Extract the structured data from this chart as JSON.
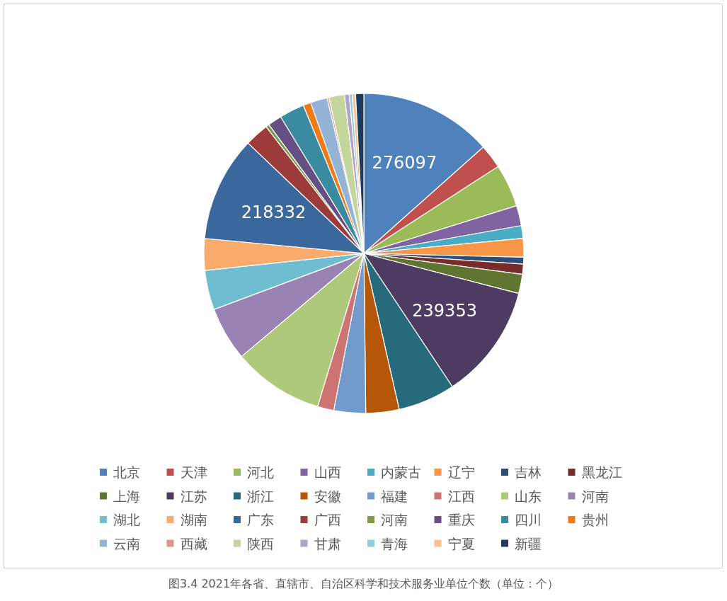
{
  "chart_data": {
    "type": "pie",
    "title": "图3.4 2021年各省、直辖市、自治区科学和技术服务业单位个数（单位：个）",
    "categories": [
      "北京",
      "天津",
      "河北",
      "山西",
      "内蒙古",
      "辽宁",
      "吉林",
      "黑龙江",
      "上海",
      "江苏",
      "浙江",
      "安徽",
      "福建",
      "江西",
      "山东",
      "河南",
      "湖北",
      "湖南",
      "广东",
      "广西",
      "河南",
      "重庆",
      "四川",
      "贵州",
      "云南",
      "西藏",
      "陕西",
      "甘肃",
      "青海",
      "宁夏",
      "新疆"
    ],
    "values": [
      276097,
      50000,
      89000,
      42000,
      26000,
      39000,
      14000,
      21000,
      40000,
      239353,
      119000,
      69000,
      66000,
      34000,
      189000,
      112000,
      82000,
      66000,
      218332,
      50000,
      7000,
      29000,
      52000,
      16000,
      35000,
      4000,
      32000,
      10000,
      6000,
      7000,
      17000
    ],
    "colors": [
      "#4f81bd",
      "#c0504d",
      "#9bbb59",
      "#8064a2",
      "#4bacc6",
      "#f79646",
      "#2c4d75",
      "#772c2a",
      "#5f7530",
      "#4d3b62",
      "#276a7c",
      "#b65708",
      "#729aca",
      "#cd7371",
      "#afc97a",
      "#9983b5",
      "#6fbdd1",
      "#f9ab6b",
      "#3a679c",
      "#9c3b39",
      "#7d9a47",
      "#664f82",
      "#3b8ba0",
      "#ee7b18",
      "#95b3d7",
      "#d99694",
      "#c3d69b",
      "#b2a2c7",
      "#92cddc",
      "#fac090",
      "#1f3a5f"
    ],
    "value_labels": [
      "276097",
      null,
      null,
      null,
      null,
      null,
      null,
      null,
      null,
      "239353",
      null,
      null,
      null,
      null,
      null,
      null,
      null,
      null,
      "218332",
      null,
      null,
      null,
      null,
      null,
      null,
      null,
      null,
      null,
      null,
      null,
      null
    ],
    "legend": "bottom"
  }
}
